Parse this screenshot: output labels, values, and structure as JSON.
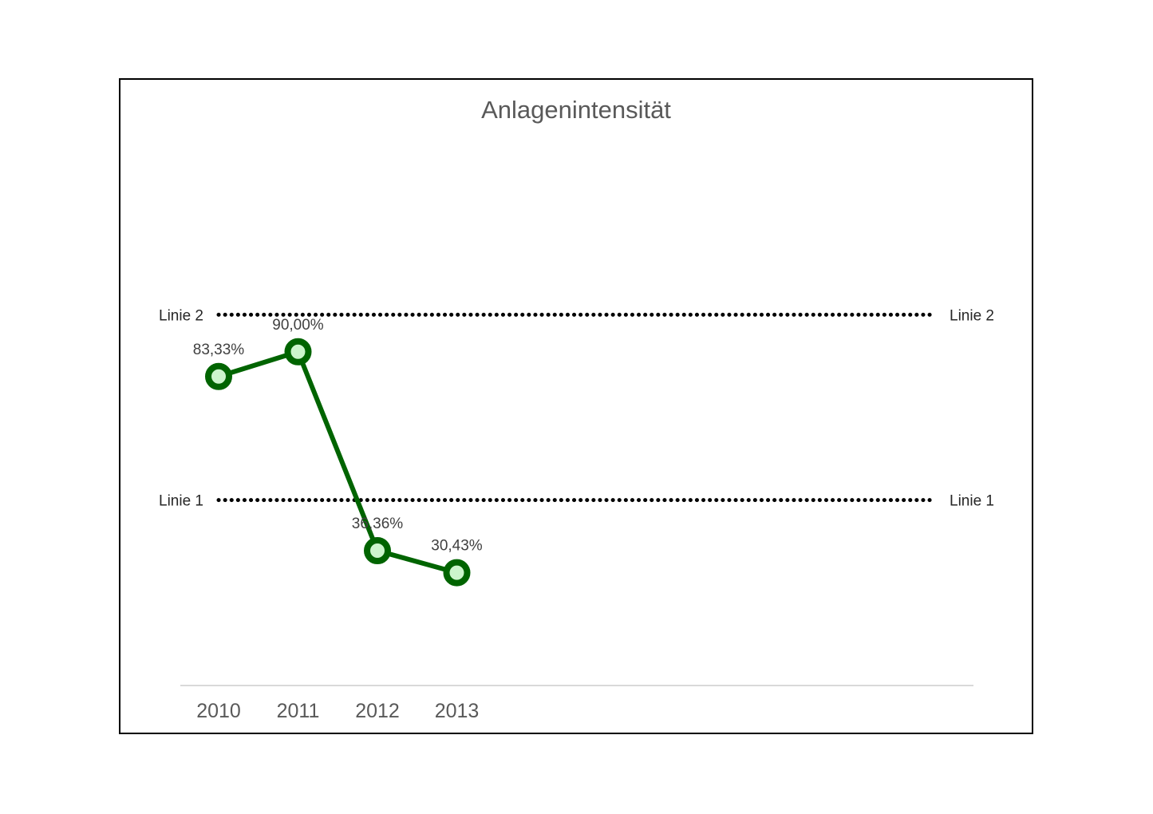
{
  "chart_data": {
    "type": "line",
    "title": "Anlagenintensität",
    "xlabel": "",
    "ylabel": "",
    "categories": [
      "2010",
      "2011",
      "2012",
      "2013"
    ],
    "series": [
      {
        "values": [
          83.33,
          90.0,
          36.36,
          30.43
        ],
        "labels": [
          "83,33%",
          "90,00%",
          "36,36%",
          "30,43%"
        ],
        "color": "#006400",
        "marker_fill": "#ccf5cc"
      }
    ],
    "reference_lines": [
      {
        "label": "Linie 2",
        "value": 100,
        "style": "dotted",
        "color": "#000000"
      },
      {
        "label": "Linie 1",
        "value": 50,
        "style": "dotted",
        "color": "#000000"
      }
    ],
    "ylim": [
      0,
      150
    ],
    "grid": false,
    "legend": "none",
    "y_axis_visible": false
  }
}
